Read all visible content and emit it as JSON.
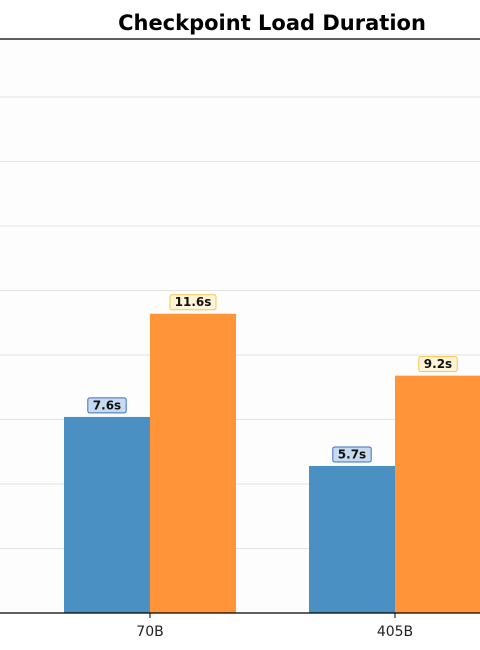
{
  "chart_data": {
    "type": "bar",
    "title": "Checkpoint Load Duration",
    "xlabel": "",
    "ylabel": "",
    "categories": [
      "70B",
      "405B"
    ],
    "series": [
      {
        "values": [
          7.6,
          5.7
        ],
        "labels": [
          "7.6s",
          "5.7s"
        ],
        "color": "#4a90c2",
        "label_bg": "#c6dbef",
        "label_border": "#3a6fc4"
      },
      {
        "values": [
          11.6,
          9.2
        ],
        "labels": [
          "11.6s",
          "9.2s"
        ],
        "color": "#ff9439",
        "label_bg": "#fff4d6",
        "label_border": "#f2c74a"
      }
    ],
    "ylim": [
      0,
      22.25
    ],
    "grid": true,
    "grid_step": 2.5
  }
}
